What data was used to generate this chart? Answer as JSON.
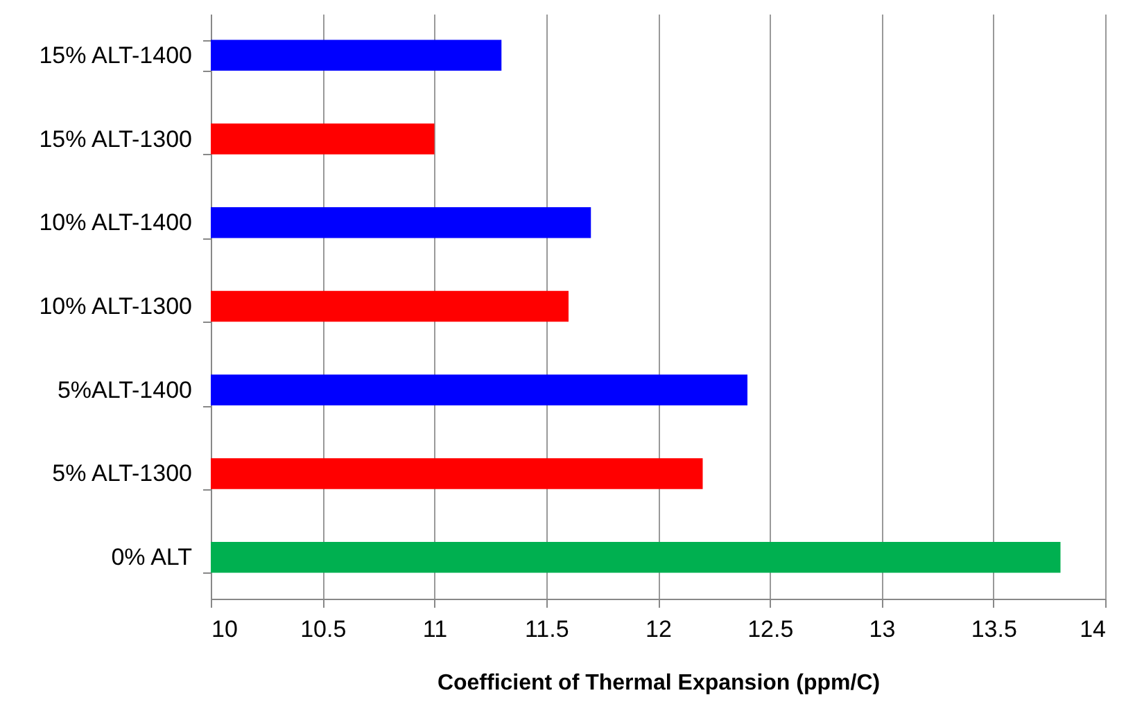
{
  "chart_data": {
    "type": "bar",
    "orientation": "horizontal",
    "xlabel": "Coefficient of Thermal Expansion (ppm/C)",
    "categories": [
      "15% ALT-1400",
      "15% ALT-1300",
      "10% ALT-1400",
      "10% ALT-1300",
      "5%ALT-1400",
      "5% ALT-1300",
      "0% ALT"
    ],
    "values": [
      11.3,
      11.0,
      11.7,
      11.6,
      12.4,
      12.2,
      13.8
    ],
    "colors": [
      "#0000ff",
      "#ff0000",
      "#0000ff",
      "#ff0000",
      "#0000ff",
      "#ff0000",
      "#00b050"
    ],
    "xlim": [
      10,
      14
    ],
    "xticks": [
      10,
      10.5,
      11,
      11.5,
      12,
      12.5,
      13,
      13.5,
      14
    ],
    "grid": "x"
  }
}
